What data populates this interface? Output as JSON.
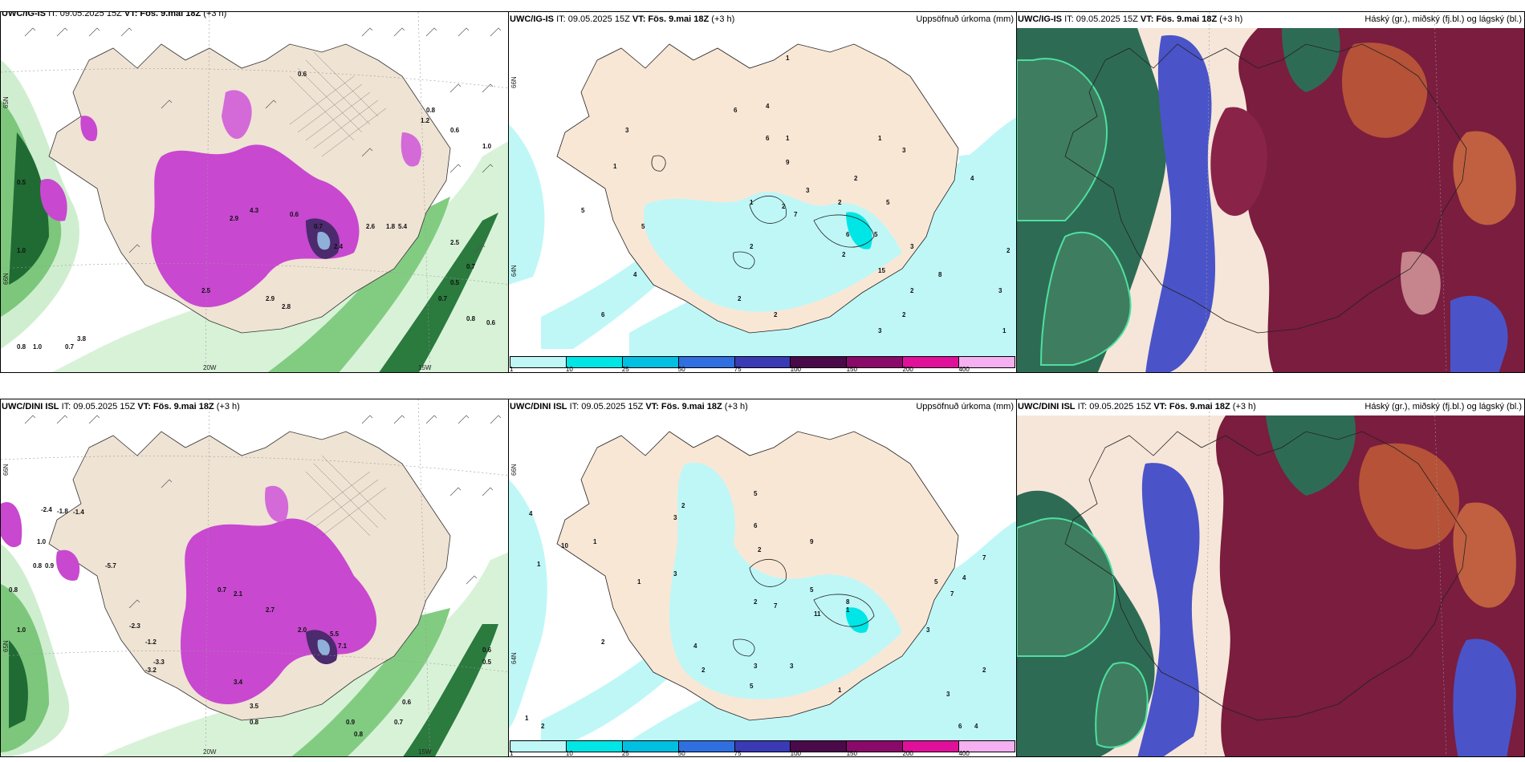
{
  "rows": [
    {
      "model": "UWC/IG-IS",
      "it_label": "IT: 09.05.2025 15Z",
      "vt_label": "VT: Fös. 9.mai 18Z",
      "lead": "(+3 h)",
      "wind_panel": {
        "lon_labels": [
          "20W",
          "15W"
        ],
        "lat_labels": [
          "65N",
          "66N"
        ],
        "values": [
          "0.6",
          "0.8",
          "1.2",
          "0.6",
          "0.5",
          "1.0",
          "0.7",
          "0.6",
          "2.9",
          "4.3",
          "1.8",
          "2.6",
          "2.4",
          "5.4",
          "2.5",
          "0.7",
          "1.0",
          "0.5",
          "0.6",
          "0.8",
          "1.0",
          "0.7",
          "3.8",
          "2.8",
          "2.9",
          "2.5",
          "0.7",
          "0.8"
        ]
      },
      "precip_panel": {
        "title_right": "Uppsöfnuð úrkoma (mm)",
        "lat_labels": [
          "66N",
          "64N"
        ],
        "values": [
          "1",
          "3",
          "4",
          "6",
          "1",
          "1",
          "3",
          "2",
          "5",
          "6",
          "5",
          "1",
          "2",
          "3",
          "7",
          "8",
          "2",
          "4",
          "6",
          "9",
          "15",
          "2",
          "3",
          "2",
          "4",
          "2",
          "5",
          "3",
          "1",
          "1",
          "2",
          "3",
          "2",
          "2",
          "6",
          "5",
          "2"
        ]
      },
      "cloud_panel": {
        "title_right": "Háský (gr.), miðský (fj.bl.) og lágský (bl.)"
      }
    },
    {
      "model": "UWC/DINI ISL",
      "it_label": "IT: 09.05.2025 15Z",
      "vt_label": "VT: Fös. 9.mai 18Z",
      "lead": "(+3 h)",
      "wind_panel": {
        "lon_labels": [
          "20W",
          "15W"
        ],
        "lat_labels": [
          "66N",
          "65N"
        ],
        "values": [
          "-2.4",
          "-1.8",
          "-1.4",
          "1.0",
          "0.8",
          "0.9",
          "-5.7",
          "-2.3",
          "-1.2",
          "-3.3",
          "-3.2",
          "0.8",
          "1.0",
          "0.7",
          "2.1",
          "2.7",
          "2.0",
          "5.5",
          "7.1",
          "3.4",
          "3.5",
          "0.6",
          "0.5",
          "0.8",
          "0.6",
          "0.7",
          "0.8",
          "0.9"
        ]
      },
      "precip_panel": {
        "title_right": "Uppsöfnuð úrkoma (mm)",
        "lat_labels": [
          "66N",
          "64N"
        ],
        "values": [
          "4",
          "1",
          "1",
          "2",
          "3",
          "3",
          "6",
          "5",
          "6",
          "9",
          "7",
          "5",
          "2",
          "5",
          "8",
          "11",
          "1",
          "3",
          "5",
          "4",
          "7",
          "7",
          "4",
          "2",
          "1",
          "3",
          "3",
          "2",
          "1",
          "3",
          "1",
          "2",
          "2",
          "4",
          "10",
          "2"
        ]
      },
      "cloud_panel": {
        "title_right": "Háský (gr.), miðský (fj.bl.) og lágský (bl.)"
      }
    }
  ],
  "colorbar": {
    "ticks": [
      "1",
      "10",
      "25",
      "50",
      "75",
      "100",
      "150",
      "200",
      "400"
    ],
    "colors": [
      "#bff7f7",
      "#00e5e5",
      "#00bfe0",
      "#2f6fe0",
      "#3a3ab5",
      "#4a0a4a",
      "#8a0a6a",
      "#e0109a",
      "#f4b0f0"
    ]
  }
}
